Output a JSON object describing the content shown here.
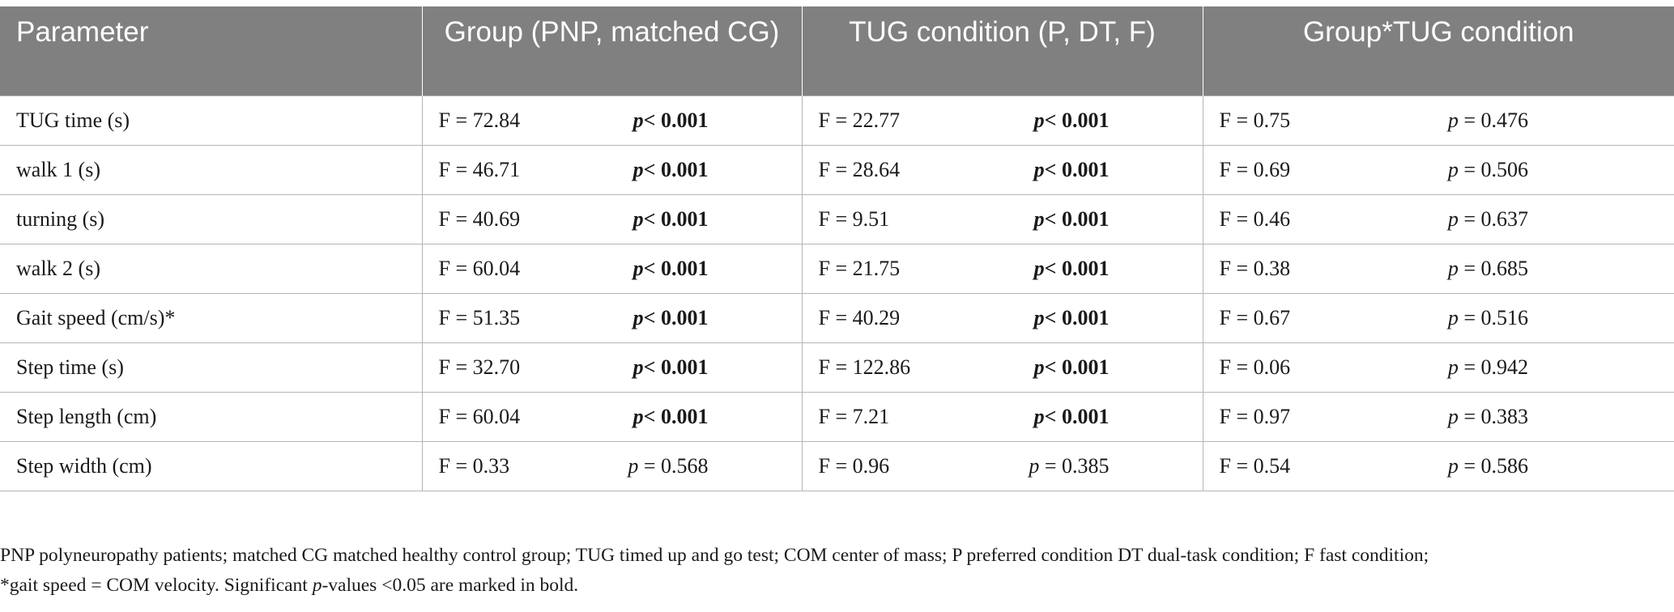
{
  "table": {
    "headers": [
      "Parameter",
      "Group (PNP, matched CG)",
      "TUG condition (P, DT, F)",
      "Group*TUG condition"
    ],
    "rows": [
      {
        "parameter": "TUG time (s)",
        "g_f": "F = 72.84",
        "g_p": "< 0.001",
        "t_f": "F = 22.77",
        "t_p": "< 0.001",
        "i_f": "F = 0.75",
        "i_p": " = 0.476"
      },
      {
        "parameter": "walk 1 (s)",
        "g_f": "F = 46.71",
        "g_p": "< 0.001",
        "t_f": "F = 28.64",
        "t_p": "< 0.001",
        "i_f": "F = 0.69",
        "i_p": " = 0.506"
      },
      {
        "parameter": "turning (s)",
        "g_f": "F = 40.69",
        "g_p": "< 0.001",
        "t_f": "F = 9.51",
        "t_p": "< 0.001",
        "i_f": "F = 0.46",
        "i_p": " = 0.637"
      },
      {
        "parameter": "walk 2 (s)",
        "g_f": "F = 60.04",
        "g_p": "< 0.001",
        "t_f": "F = 21.75",
        "t_p": "< 0.001",
        "i_f": "F = 0.38",
        "i_p": " = 0.685"
      },
      {
        "parameter": "Gait speed (cm/s)*",
        "g_f": "F = 51.35",
        "g_p": "< 0.001",
        "t_f": "F = 40.29",
        "t_p": "< 0.001",
        "i_f": "F = 0.67",
        "i_p": " = 0.516"
      },
      {
        "parameter": "Step time (s)",
        "g_f": "F = 32.70",
        "g_p": "< 0.001",
        "t_f": "F = 122.86",
        "t_p": "< 0.001",
        "i_f": "F = 0.06",
        "i_p": " = 0.942"
      },
      {
        "parameter": "Step length (cm)",
        "g_f": "F = 60.04",
        "g_p": "< 0.001",
        "t_f": "F = 7.21",
        "t_p": "< 0.001",
        "i_f": "F = 0.97",
        "i_p": " = 0.383"
      },
      {
        "parameter": "Step width (cm)",
        "g_f": "F = 0.33",
        "g_p": " = 0.568",
        "t_f": "F = 0.96",
        "t_p": " = 0.385",
        "i_f": "F = 0.54",
        "i_p": " = 0.586"
      }
    ],
    "p_letter": "p"
  },
  "footnote": {
    "line1": "PNP polyneuropathy patients; matched CG matched healthy control group; TUG timed up and go test; COM center of mass; P preferred condition DT dual-task condition; F fast condition;",
    "line2_a": "*gait speed = COM velocity. Significant ",
    "line2_p": "p",
    "line2_b": "-values <0.05 are marked in bold."
  },
  "colors": {
    "header_bg": "#808080",
    "header_text": "#ffffff",
    "grid_line": "#b5b5b5",
    "text": "#1a1a1a"
  }
}
